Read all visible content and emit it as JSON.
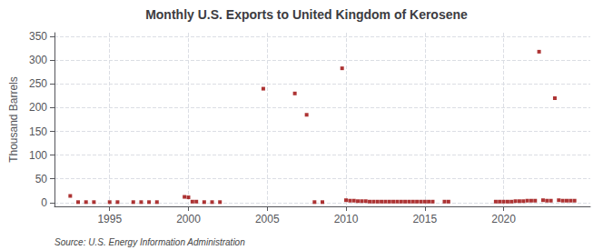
{
  "chart_data": {
    "type": "scatter",
    "title": "Monthly U.S. Exports to United Kingdom of Kerosene",
    "ylabel": "Thousand Barrels",
    "source": "Source: U.S. Energy Information Administration",
    "color": "#990000",
    "marker": "square",
    "grid": true,
    "xlim": [
      1991.5,
      2025.5
    ],
    "ylim": [
      -8,
      358
    ],
    "xticks": [
      1995,
      2000,
      2005,
      2010,
      2015,
      2020
    ],
    "yticks": [
      0,
      50,
      100,
      150,
      200,
      250,
      300,
      350
    ],
    "x": [
      1992.5,
      1993.0,
      1993.5,
      1994.0,
      1995.0,
      1995.5,
      1996.5,
      1997.0,
      1997.5,
      1998.0,
      1999.75,
      2000.0,
      2000.25,
      2000.5,
      2001.0,
      2001.5,
      2002.0,
      2004.75,
      2006.75,
      2007.5,
      2008.0,
      2008.5,
      2009.75,
      2010.0,
      2010.25,
      2010.5,
      2010.75,
      2011.0,
      2011.25,
      2011.5,
      2011.75,
      2012.0,
      2012.25,
      2012.5,
      2012.75,
      2013.0,
      2013.25,
      2013.5,
      2013.75,
      2014.0,
      2014.25,
      2014.5,
      2014.75,
      2015.0,
      2015.25,
      2015.5,
      2016.25,
      2016.5,
      2019.5,
      2019.75,
      2020.0,
      2020.25,
      2020.5,
      2020.75,
      2021.0,
      2021.25,
      2021.5,
      2021.75,
      2022.0,
      2022.25,
      2022.5,
      2022.75,
      2023.0,
      2023.25,
      2023.5,
      2023.75,
      2024.0,
      2024.25,
      2024.5
    ],
    "values": [
      14,
      1,
      1,
      1,
      1,
      1,
      1,
      1,
      1,
      1,
      12,
      11,
      2,
      2,
      1,
      1,
      1,
      240,
      230,
      185,
      1,
      1,
      283,
      5,
      4,
      4,
      3,
      3,
      3,
      2,
      2,
      2,
      2,
      2,
      2,
      2,
      2,
      2,
      2,
      2,
      2,
      2,
      2,
      2,
      2,
      2,
      2,
      2,
      2,
      2,
      2,
      2,
      2,
      3,
      3,
      3,
      4,
      4,
      4,
      318,
      5,
      4,
      4,
      220,
      5,
      4,
      4,
      4,
      4
    ]
  }
}
